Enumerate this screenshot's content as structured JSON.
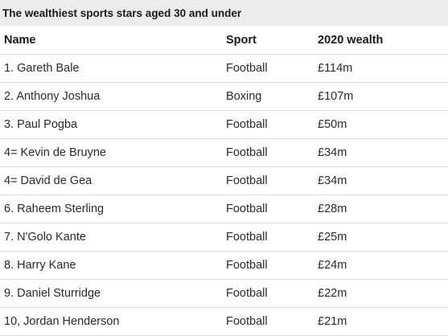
{
  "title": "The wealthiest sports stars aged 30 and under",
  "columns": [
    "Name",
    "Sport",
    "2020 wealth"
  ],
  "rows": [
    {
      "name": "1. Gareth Bale",
      "sport": "Football",
      "wealth": "£114m"
    },
    {
      "name": "2. Anthony Joshua",
      "sport": "Boxing",
      "wealth": "£107m"
    },
    {
      "name": "3. Paul Pogba",
      "sport": "Football",
      "wealth": "£50m"
    },
    {
      "name": "4= Kevin de Bruyne",
      "sport": "Football",
      "wealth": "£34m"
    },
    {
      "name": "4= David de Gea",
      "sport": "Football",
      "wealth": "£34m"
    },
    {
      "name": "6. Raheem Sterling",
      "sport": "Football",
      "wealth": "£28m"
    },
    {
      "name": "7. N'Golo Kante",
      "sport": "Football",
      "wealth": "£25m"
    },
    {
      "name": "8. Harry Kane",
      "sport": "Football",
      "wealth": "£24m"
    },
    {
      "name": "9. Daniel Sturridge",
      "sport": "Football",
      "wealth": "£22m"
    },
    {
      "name": "10, Jordan Henderson",
      "sport": "Football",
      "wealth": "£21m"
    }
  ]
}
